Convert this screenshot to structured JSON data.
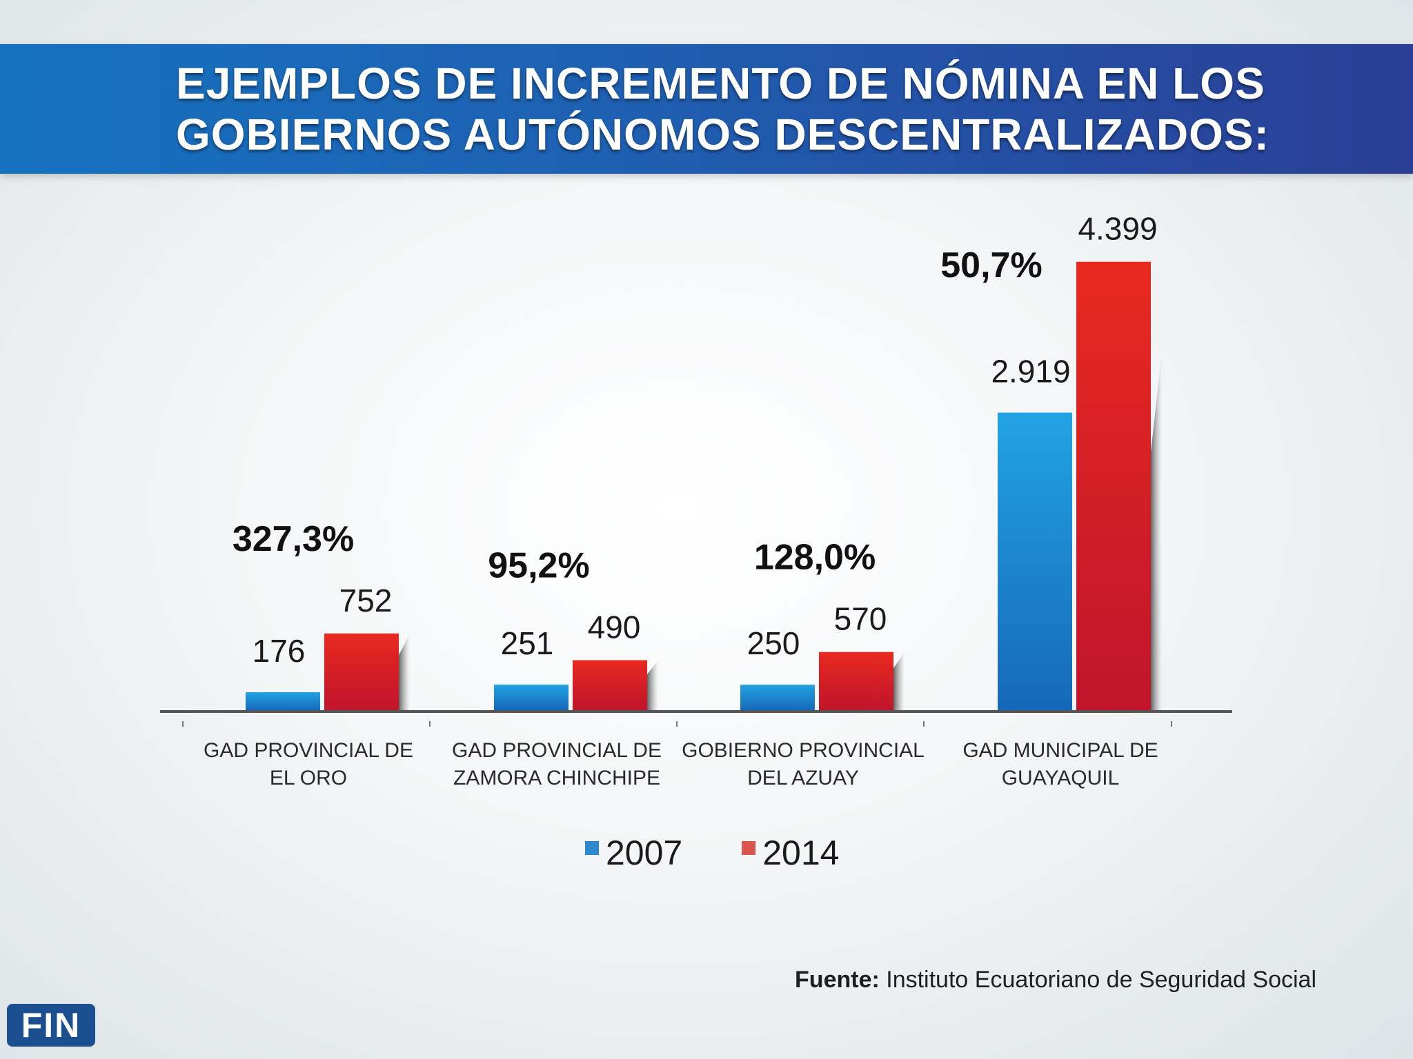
{
  "header": {
    "title_line1": "EJEMPLOS DE INCREMENTO DE NÓMINA EN LOS",
    "title_line2": "GOBIERNOS AUTÓNOMOS DESCENTRALIZADOS:"
  },
  "colors": {
    "blue_2007": "#1a8ad6",
    "red_2014": "#cc1e2a",
    "banner": "#1f5fb1",
    "axis": "#555555"
  },
  "chart_data": {
    "type": "bar",
    "title": "EJEMPLOS DE INCREMENTO DE NÓMINA EN LOS GOBIERNOS AUTÓNOMOS DESCENTRALIZADOS:",
    "xlabel": "",
    "ylabel": "",
    "ylim": [
      0,
      4600
    ],
    "grid": false,
    "legend_position": "bottom-center",
    "categories": [
      [
        "GAD PROVINCIAL DE",
        "EL ORO"
      ],
      [
        "GAD PROVINCIAL DE",
        "ZAMORA CHINCHIPE"
      ],
      [
        "GOBIERNO PROVINCIAL",
        "DEL AZUAY"
      ],
      [
        "GAD MUNICIPAL DE",
        "GUAYAQUIL"
      ]
    ],
    "series": [
      {
        "name": "2007",
        "color": "#1a8ad6",
        "values": [
          176,
          251,
          250,
          2919
        ],
        "labels": [
          "176",
          "251",
          "250",
          "2.919"
        ]
      },
      {
        "name": "2014",
        "color": "#cc1e2a",
        "values": [
          752,
          490,
          570,
          4399
        ],
        "labels": [
          "752",
          "490",
          "570",
          "4.399"
        ]
      }
    ],
    "annotations": [
      "327,3%",
      "95,2%",
      "128,0%",
      "50,7%"
    ]
  },
  "legend": {
    "item1": "2007",
    "item2": "2014"
  },
  "source": {
    "label": "Fuente:",
    "text": " Instituto Ecuatoriano de Seguridad Social"
  },
  "badge": {
    "text": "FIN"
  }
}
